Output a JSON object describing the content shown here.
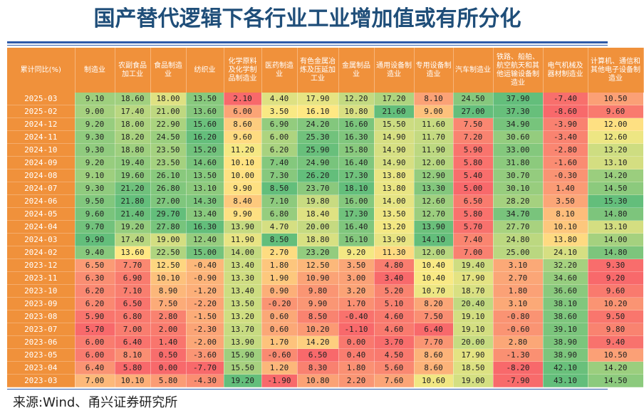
{
  "title": "国产替代逻辑下各行业工业增加值或有所分化",
  "source": "来源:Wind、甬兴证券研究所",
  "chart_data": {
    "type": "table",
    "headers": [
      "累计同比(%)",
      "制造业",
      "农副食品加工业",
      "食品制造业",
      "纺织业",
      "化学原料及化学制品制造业",
      "医药制造业",
      "有色金属冶炼及压延加工业",
      "金属制品业",
      "通用设备制造业",
      "专用设备制造业",
      "汽车制造业",
      "铁路、船舶、航空航天和其他运输设备制造业",
      "电气机械及器材制造业",
      "计算机、通信和其他电子设备制造业"
    ],
    "rows": [
      [
        "2025-03",
        "9.10",
        "18.60",
        "18.00",
        "13.50",
        "2.10",
        "4.40",
        "17.90",
        "12.20",
        "17.20",
        "8.10",
        "24.50",
        "37.90",
        "-7.40",
        "10.50"
      ],
      [
        "2025-02",
        "9.00",
        "17.40",
        "21.00",
        "13.60",
        "6.00",
        "3.50",
        "16.10",
        "10.80",
        "21.60",
        "9.00",
        "27.00",
        "37.30",
        "-8.60",
        "9.60"
      ],
      [
        "2024-12",
        "9.20",
        "18.00",
        "22.90",
        "15.60",
        "8.60",
        "6.90",
        "24.20",
        "16.60",
        "15.50",
        "11.60",
        "7.50",
        "34.90",
        "-3.90",
        "12.00"
      ],
      [
        "2024-11",
        "9.30",
        "18.20",
        "24.50",
        "16.20",
        "9.60",
        "6.00",
        "25.30",
        "16.30",
        "14.90",
        "11.70",
        "7.20",
        "30.60",
        "-3.40",
        "12.60"
      ],
      [
        "2024-10",
        "9.30",
        "18.80",
        "23.50",
        "15.20",
        "11.20",
        "6.20",
        "25.90",
        "15.80",
        "14.90",
        "11.90",
        "5.90",
        "33.00",
        "-2.80",
        "13.20"
      ],
      [
        "2024-09",
        "9.20",
        "19.40",
        "23.50",
        "14.60",
        "10.10",
        "7.40",
        "24.90",
        "16.40",
        "14.90",
        "12.00",
        "5.80",
        "31.80",
        "-1.60",
        "13.10"
      ],
      [
        "2024-08",
        "9.10",
        "19.60",
        "26.10",
        "13.50",
        "10.00",
        "7.30",
        "26.20",
        "17.30",
        "13.80",
        "12.90",
        "5.40",
        "30.70",
        "-0.30",
        "14.20"
      ],
      [
        "2024-07",
        "9.30",
        "21.20",
        "26.80",
        "13.10",
        "9.90",
        "8.50",
        "23.70",
        "18.10",
        "13.80",
        "13.30",
        "5.00",
        "30.10",
        "1.40",
        "14.50"
      ],
      [
        "2024-06",
        "9.50",
        "21.80",
        "27.00",
        "14.30",
        "8.40",
        "7.10",
        "19.80",
        "16.00",
        "14.00",
        "12.60",
        "6.50",
        "28.20",
        "3.50",
        "15.30"
      ],
      [
        "2024-05",
        "9.60",
        "21.40",
        "29.70",
        "13.40",
        "9.90",
        "6.80",
        "18.40",
        "17.30",
        "13.50",
        "12.70",
        "5.80",
        "34.70",
        "8.10",
        "14.80"
      ],
      [
        "2024-04",
        "9.70",
        "19.20",
        "27.80",
        "16.30",
        "13.90",
        "4.70",
        "20.00",
        "16.40",
        "13.20",
        "13.90",
        "5.70",
        "27.70",
        "10.10",
        "13.10"
      ],
      [
        "2024-03",
        "9.90",
        "17.40",
        "19.00",
        "12.40",
        "11.90",
        "8.50",
        "18.80",
        "16.10",
        "13.90",
        "14.10",
        "7.40",
        "24.80",
        "13.80",
        "14.00"
      ],
      [
        "2024-02",
        "9.40",
        "13.60",
        "22.50",
        "15.00",
        "14.00",
        "2.70",
        "23.20",
        "9.20",
        "11.30",
        "12.00",
        "7.00",
        "25.00",
        "24.10",
        "14.80"
      ],
      [
        "2023-12",
        "6.50",
        "7.70",
        "12.50",
        "-0.40",
        "13.40",
        "1.80",
        "12.50",
        "3.50",
        "4.80",
        "10.40",
        "19.40",
        "3.10",
        "32.20",
        "9.30"
      ],
      [
        "2023-11",
        "6.30",
        "6.90",
        "10.10",
        "-0.90",
        "13.30",
        "1.90",
        "10.90",
        "3.00",
        "3.40",
        "10.40",
        "17.90",
        "2.70",
        "34.60",
        "9.20"
      ],
      [
        "2023-10",
        "6.20",
        "7.10",
        "8.90",
        "-1.20",
        "13.40",
        "0.90",
        "9.80",
        "3.20",
        "5.20",
        "10.70",
        "18.70",
        "1.80",
        "36.60",
        "9.60"
      ],
      [
        "2023-09",
        "6.20",
        "6.50",
        "7.50",
        "-2.20",
        "13.50",
        "-0.20",
        "9.90",
        "1.70",
        "5.10",
        "8.20",
        "20.40",
        "3.10",
        "38.10",
        "10.20"
      ],
      [
        "2023-08",
        "5.90",
        "6.80",
        "2.80",
        "-1.50",
        "13.20",
        "0.60",
        "8.50",
        "-0.40",
        "4.60",
        "7.50",
        "19.10",
        "-0.80",
        "38.60",
        "9.50"
      ],
      [
        "2023-07",
        "5.70",
        "7.00",
        "2.00",
        "-2.30",
        "13.70",
        "0.60",
        "10.20",
        "-1.10",
        "4.60",
        "6.40",
        "19.10",
        "-0.60",
        "39.10",
        "9.80"
      ],
      [
        "2023-06",
        "6.00",
        "6.40",
        "1.40",
        "-2.00",
        "13.90",
        "1.70",
        "14.20",
        "0.00",
        "3.70",
        "7.70",
        "20.00",
        "2.80",
        "38.90",
        "9.40"
      ],
      [
        "2023-05",
        "6.00",
        "8.10",
        "0.50",
        "-3.60",
        "15.90",
        "-0.60",
        "6.50",
        "0.40",
        "4.50",
        "8.60",
        "17.90",
        "-1.30",
        "38.90",
        "10.50"
      ],
      [
        "2023-04",
        "6.40",
        "5.80",
        "0.00",
        "-7.70",
        "15.50",
        "1.20",
        "8.30",
        "1.80",
        "5.60",
        "8.60",
        "18.50",
        "-8.20",
        "42.10",
        "14.20"
      ],
      [
        "2023-03",
        "7.00",
        "10.10",
        "5.80",
        "-4.30",
        "19.20",
        "-1.90",
        "10.80",
        "2.20",
        "7.60",
        "10.60",
        "19.00",
        "-7.90",
        "43.10",
        "14.50"
      ]
    ]
  },
  "colors": {
    "header_bg": "#f0913b",
    "title": "#1f4e79",
    "scale_low": "#f8696b",
    "scale_mid": "#ffeb84",
    "scale_high": "#63be7b"
  }
}
